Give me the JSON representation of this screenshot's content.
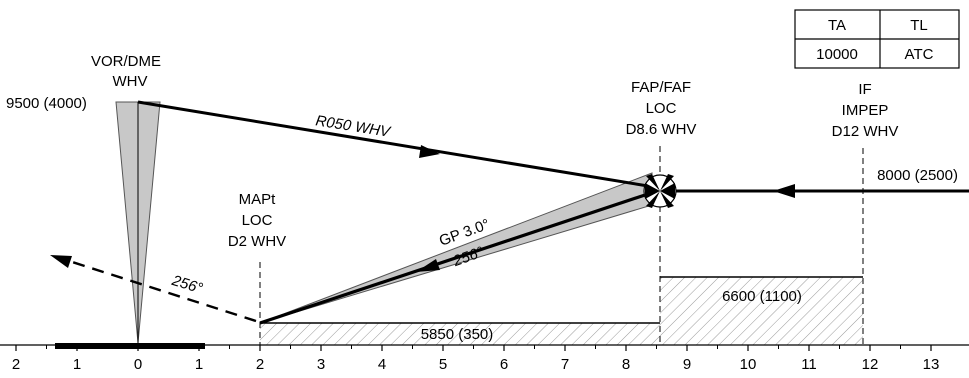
{
  "colors": {
    "line": "#000000",
    "shade": "#c8c8c8",
    "hatch": "#9a9a9a",
    "background": "#ffffff"
  },
  "transition_table": {
    "ta_header": "TA",
    "tl_header": "TL",
    "ta_value": "10000",
    "tl_value": "ATC"
  },
  "vor": {
    "line1": "VOR/DME",
    "line2": "WHV",
    "altitude": "9500 (4000)"
  },
  "radial_label": "R050 WHV",
  "fap": {
    "line1": "FAP/FAF",
    "line2": "LOC",
    "line3": "D8.6 WHV"
  },
  "if_fix": {
    "line1": "IF",
    "line2": "IMPEP",
    "line3": "D12 WHV"
  },
  "if_altitude": "8000 (2500)",
  "mapt": {
    "line1": "MAPt",
    "line2": "LOC",
    "line3": "D2 WHV"
  },
  "glidepath": {
    "label": "GP 3.0°",
    "course": "256°"
  },
  "missed_course": "256°",
  "altitudes": {
    "fap_segment": "6600 (1100)",
    "final_segment": "5850 (350)"
  },
  "distance_scale": [
    "2",
    "1",
    "0",
    "1",
    "2",
    "3",
    "4",
    "5",
    "6",
    "7",
    "8",
    "9",
    "10",
    "11",
    "12",
    "13"
  ],
  "diagram": {
    "fix_distances_nm": {
      "vor": 0,
      "mapt": 2,
      "fap": 8.6,
      "if": 12
    }
  }
}
